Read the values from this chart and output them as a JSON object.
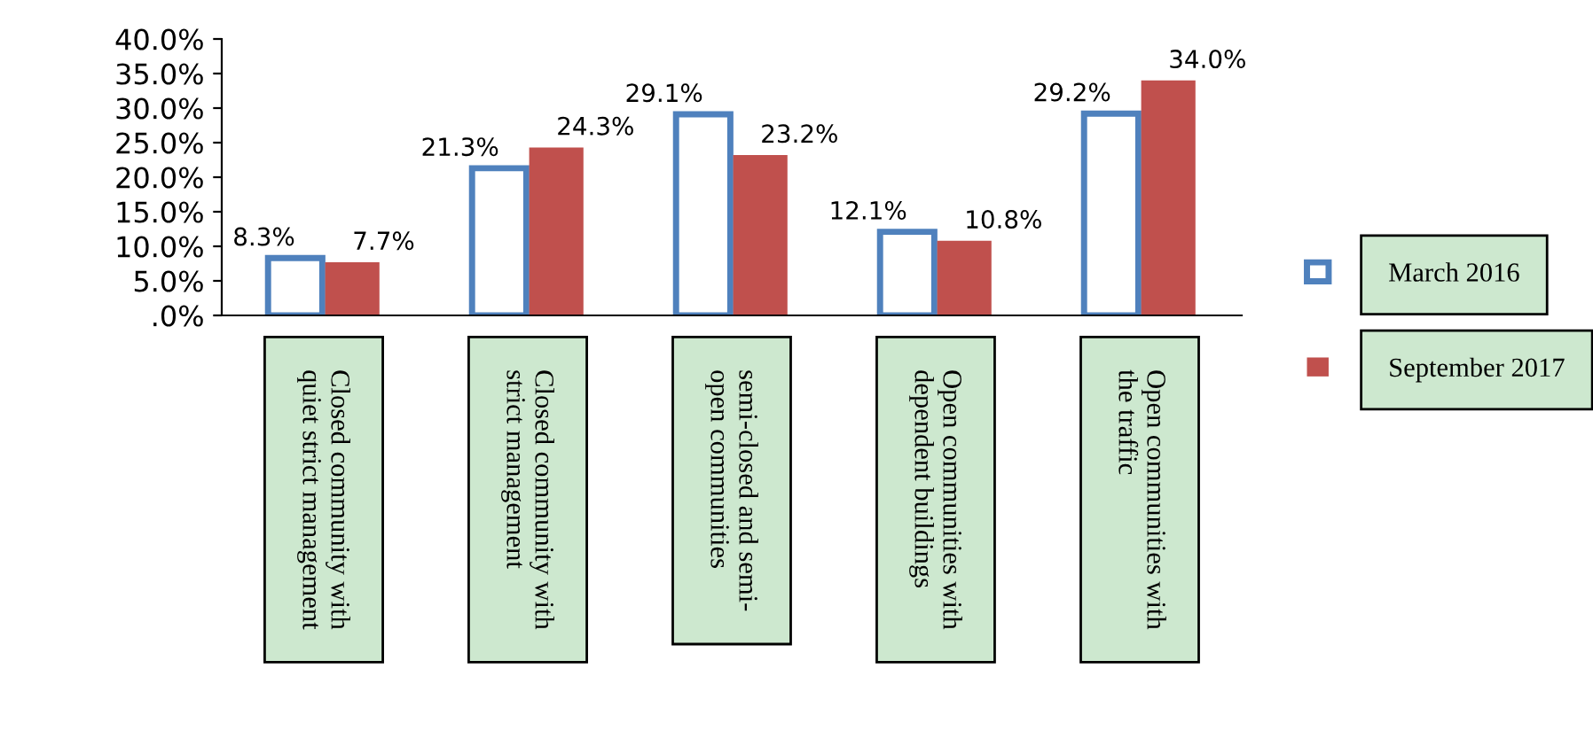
{
  "chart_data": {
    "type": "bar",
    "categories": [
      "Closed community with\nquiet strict management",
      "Closed community with\nstrict management",
      "semi-closed and semi-\nopen communities",
      "Open communities with\ndependent buildings",
      "Open communities with\nthe traffic"
    ],
    "series": [
      {
        "name": "March 2016",
        "color": "#4f81bd",
        "values": [
          8.3,
          21.3,
          29.1,
          12.1,
          29.2
        ],
        "value_labels": [
          "8.3%",
          "21.3%",
          "29.1%",
          "12.1%",
          "29.2%"
        ]
      },
      {
        "name": "September 2017",
        "color": "#c0504d",
        "values": [
          7.7,
          24.3,
          23.2,
          10.8,
          34.0
        ],
        "value_labels": [
          "7.7%",
          "24.3%",
          "23.2%",
          "10.8%",
          "34.0%"
        ]
      }
    ],
    "ylim": [
      0,
      40
    ],
    "yticks": [
      {
        "value": 0,
        "label": ".0%"
      },
      {
        "value": 5,
        "label": "5.0%"
      },
      {
        "value": 10,
        "label": "10.0%"
      },
      {
        "value": 15,
        "label": "15.0%"
      },
      {
        "value": 20,
        "label": "20.0%"
      },
      {
        "value": 25,
        "label": "25.0%"
      },
      {
        "value": 30,
        "label": "30.0%"
      },
      {
        "value": 35,
        "label": "35.0%"
      },
      {
        "value": 40,
        "label": "40.0%"
      }
    ],
    "grid": false,
    "legend": "right"
  }
}
